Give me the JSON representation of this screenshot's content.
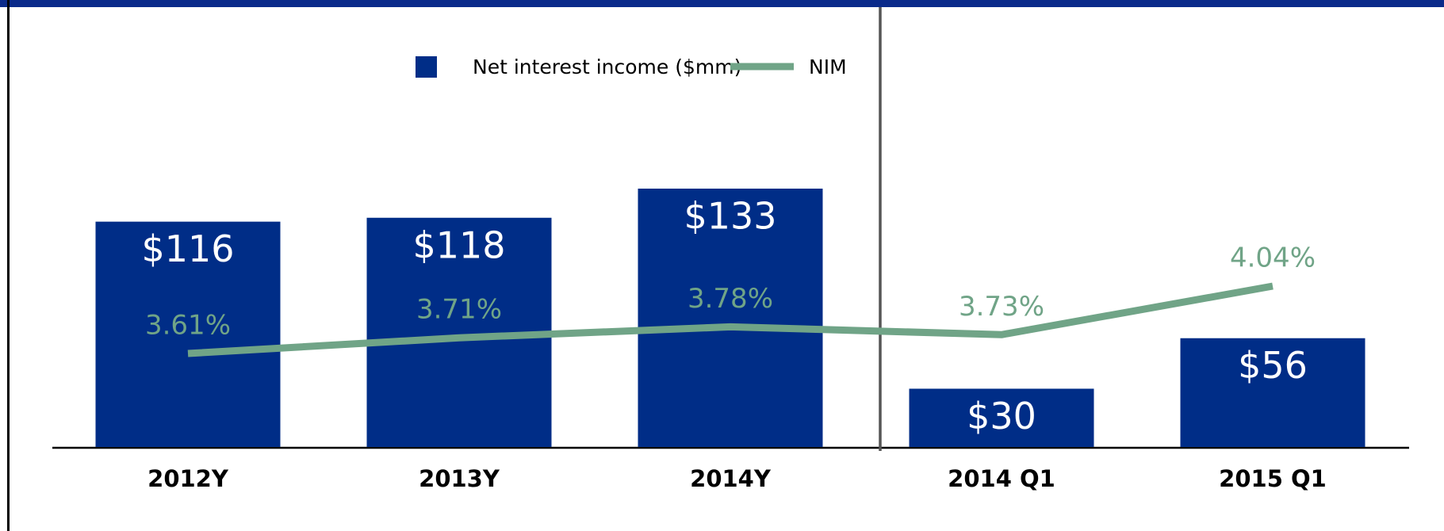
{
  "chart_data": {
    "type": "bar",
    "categories": [
      "2012Y",
      "2013Y",
      "2014Y",
      "2014 Q1",
      "2015 Q1"
    ],
    "series": [
      {
        "name": "Net interest income ($mm)",
        "color": "#002d87",
        "values": [
          116,
          118,
          133,
          30,
          56
        ],
        "value_labels": [
          "$116",
          "$118",
          "$133",
          "$30",
          "$56"
        ]
      },
      {
        "name": "NIM",
        "type": "line",
        "color": "#70a487",
        "values": [
          3.61,
          3.71,
          3.78,
          3.73,
          4.04
        ],
        "value_labels": [
          "3.61%",
          "3.71%",
          "3.78%",
          "3.73%",
          "4.04%"
        ]
      }
    ]
  }
}
